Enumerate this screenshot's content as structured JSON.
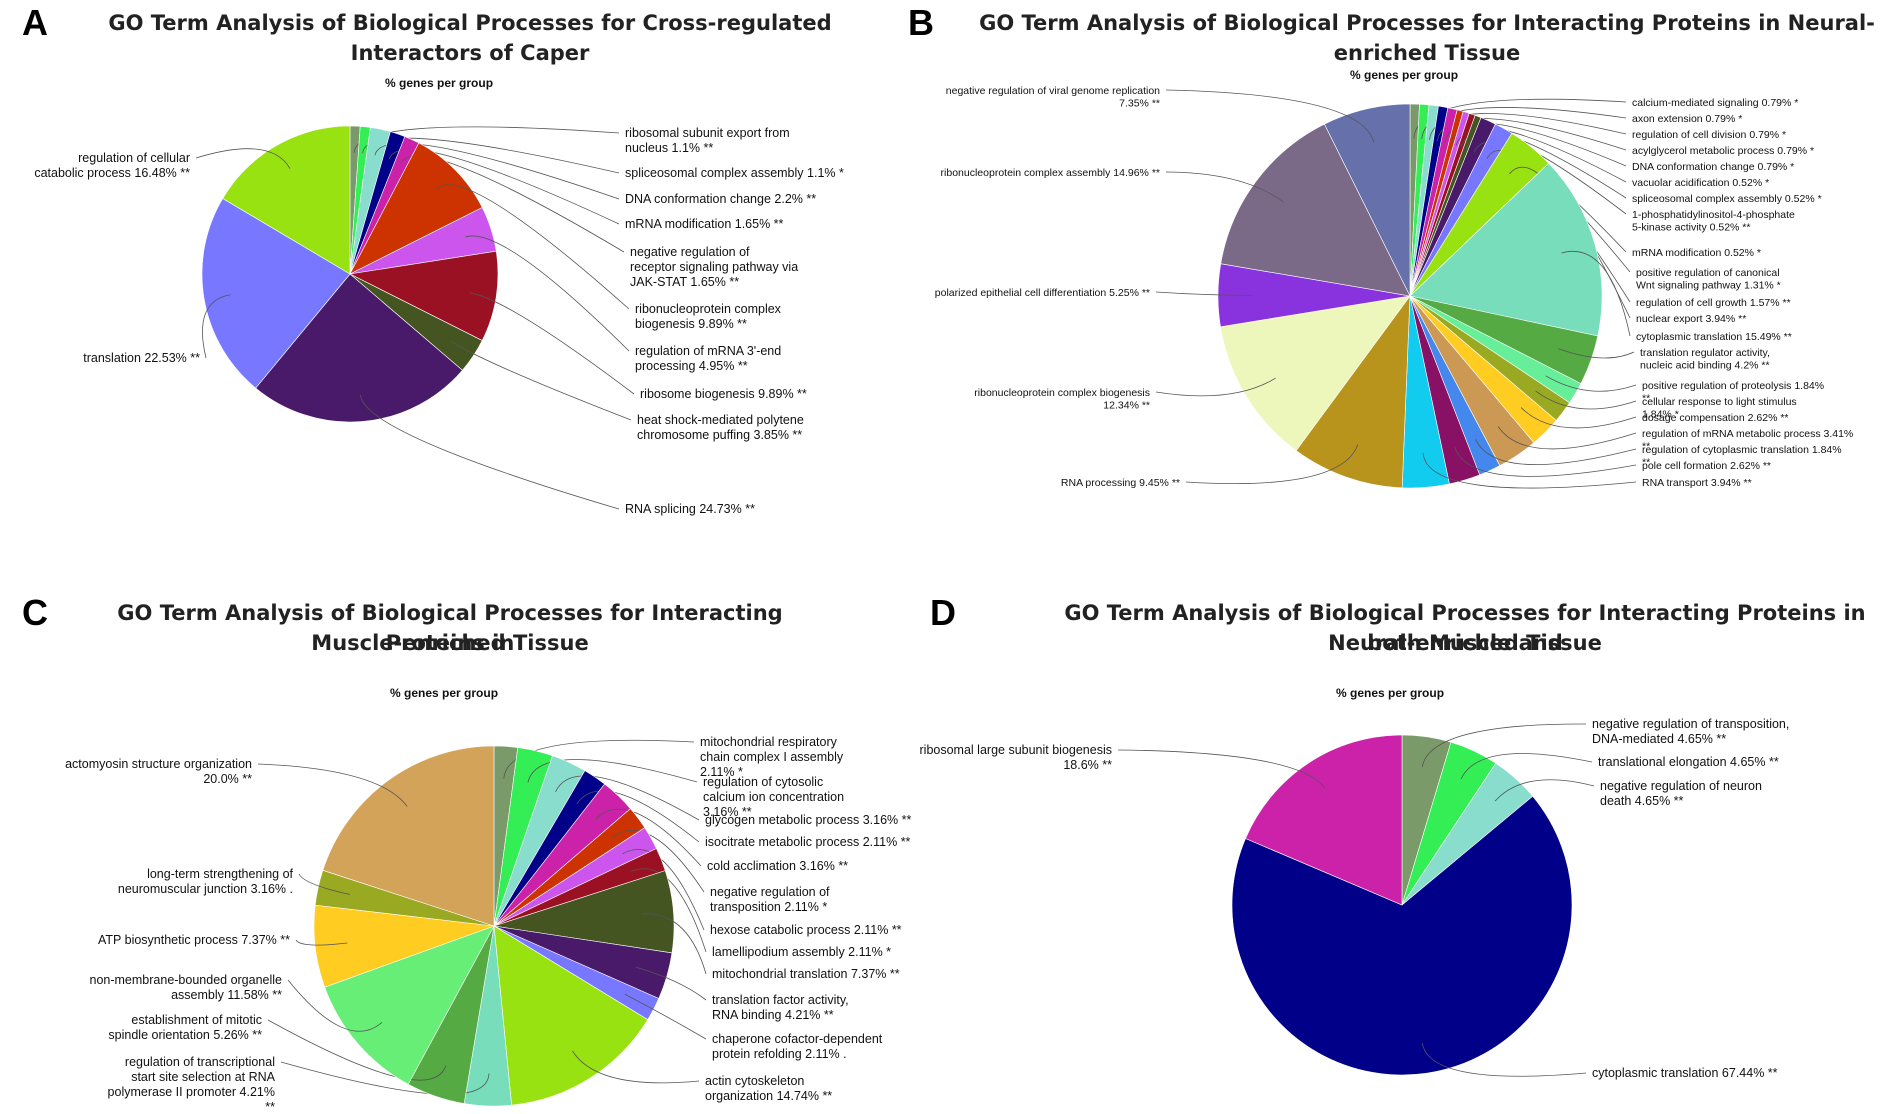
{
  "chart_data": [
    {
      "panel": "A",
      "type": "pie",
      "title": "GO Term Analysis of Biological Processes for Cross-regulated Interactors of Caper",
      "subtitle": "% genes per group",
      "slices": [
        {
          "label": "ribosomal subunit export from nucleus 1.1% **",
          "value": 1.1,
          "color": "#7a9a6a"
        },
        {
          "label": "spliceosomal complex assembly 1.1% *",
          "value": 1.1,
          "color": "#33ee55"
        },
        {
          "label": "DNA conformation change 2.2% **",
          "value": 2.2,
          "color": "#88ddcc"
        },
        {
          "label": "mRNA modification 1.65% **",
          "value": 1.65,
          "color": "#000088"
        },
        {
          "label": "negative regulation of receptor signaling pathway via JAK-STAT 1.65% **",
          "value": 1.65,
          "color": "#cc22aa"
        },
        {
          "label": "ribonucleoprotein complex biogenesis 9.89% **",
          "value": 9.89,
          "color": "#cc3300"
        },
        {
          "label": "regulation of mRNA 3'-end processing 4.95% **",
          "value": 4.95,
          "color": "#cc55ee"
        },
        {
          "label": "ribosome biogenesis 9.89% **",
          "value": 9.89,
          "color": "#991122"
        },
        {
          "label": "heat shock-mediated polytene chromosome puffing 3.85% **",
          "value": 3.85,
          "color": "#445522"
        },
        {
          "label": "RNA splicing 24.73% **",
          "value": 24.73,
          "color": "#4a1a6a"
        },
        {
          "label": "translation 22.53% **",
          "value": 22.53,
          "color": "#7777ff"
        },
        {
          "label": "regulation of cellular catabolic process 16.48% **",
          "value": 16.48,
          "color": "#99e211"
        }
      ]
    },
    {
      "panel": "B",
      "type": "pie",
      "title": "GO Term Analysis of Biological Processes for Interacting Proteins in Neural-enriched Tissue",
      "subtitle": "% genes per group",
      "slices": [
        {
          "label": "calcium-mediated signaling 0.79% *",
          "value": 0.79,
          "color": "#7a9a6a"
        },
        {
          "label": "axon extension 0.79% *",
          "value": 0.79,
          "color": "#33ee55"
        },
        {
          "label": "regulation of cell division 0.79% *",
          "value": 0.79,
          "color": "#88ddcc"
        },
        {
          "label": "acylglycerol metabolic process 0.79% *",
          "value": 0.79,
          "color": "#000088"
        },
        {
          "label": "DNA conformation change 0.79% *",
          "value": 0.79,
          "color": "#cc22aa"
        },
        {
          "label": "vacuolar acidification 0.52% *",
          "value": 0.52,
          "color": "#cc3300"
        },
        {
          "label": "spliceosomal complex assembly 0.52% *",
          "value": 0.52,
          "color": "#cc55ee"
        },
        {
          "label": "1-phosphatidylinositol-4-phosphate 5-kinase activity 0.52% **",
          "value": 0.52,
          "color": "#991122"
        },
        {
          "label": "mRNA modification 0.52% *",
          "value": 0.52,
          "color": "#445522"
        },
        {
          "label": "positive regulation of canonical Wnt signaling pathway 1.31% *",
          "value": 1.31,
          "color": "#4a1a6a"
        },
        {
          "label": "regulation of cell growth 1.57% **",
          "value": 1.57,
          "color": "#7777ff"
        },
        {
          "label": "nuclear export 3.94% **",
          "value": 3.94,
          "color": "#99e211"
        },
        {
          "label": "cytoplasmic translation 15.49% **",
          "value": 15.49,
          "color": "#77ddbb"
        },
        {
          "label": "translation regulator activity, nucleic acid binding 4.2% **",
          "value": 4.2,
          "color": "#55aa44"
        },
        {
          "label": "positive regulation of proteolysis 1.84% **",
          "value": 1.84,
          "color": "#66ee99"
        },
        {
          "label": "cellular response to light stimulus 1.84% *",
          "value": 1.84,
          "color": "#99aa22"
        },
        {
          "label": "dosage compensation 2.62% **",
          "value": 2.62,
          "color": "#ffcc22"
        },
        {
          "label": "regulation of mRNA metabolic process 3.41% **",
          "value": 3.41,
          "color": "#cc9955"
        },
        {
          "label": "regulation of cytoplasmic translation 1.84% **",
          "value": 1.84,
          "color": "#4488ee"
        },
        {
          "label": "pole cell formation 2.62% **",
          "value": 2.62,
          "color": "#881166"
        },
        {
          "label": "RNA transport 3.94% **",
          "value": 3.94,
          "color": "#11ccee"
        },
        {
          "label": "RNA processing 9.45% **",
          "value": 9.45,
          "color": "#b8941c"
        },
        {
          "label": "ribonucleoprotein complex biogenesis 12.34% **",
          "value": 12.34,
          "color": "#eef7bb"
        },
        {
          "label": "polarized epithelial cell differentiation 5.25% **",
          "value": 5.25,
          "color": "#8833dd"
        },
        {
          "label": "ribonucleoprotein complex assembly 14.96% **",
          "value": 14.96,
          "color": "#7a6a88"
        },
        {
          "label": "negative regulation of viral genome replication 7.35% **",
          "value": 7.35,
          "color": "#6670aa"
        }
      ]
    },
    {
      "panel": "C",
      "type": "pie",
      "title": "GO Term Analysis of Biological Processes for Interacting Proteins in Muscle-enriched Tissue",
      "subtitle": "% genes per group",
      "slices": [
        {
          "label": "mitochondrial respiratory chain complex I assembly 2.11% *",
          "value": 2.11,
          "color": "#7a9a6a"
        },
        {
          "label": "regulation of cytosolic calcium ion concentration 3.16% **",
          "value": 3.16,
          "color": "#33ee55"
        },
        {
          "label": "glycogen metabolic process 3.16% **",
          "value": 3.16,
          "color": "#88ddcc"
        },
        {
          "label": "isocitrate metabolic process 2.11% **",
          "value": 2.11,
          "color": "#000088"
        },
        {
          "label": "cold acclimation 3.16% **",
          "value": 3.16,
          "color": "#cc22aa"
        },
        {
          "label": "negative regulation of transposition 2.11% *",
          "value": 2.11,
          "color": "#cc3300"
        },
        {
          "label": "hexose catabolic process 2.11% **",
          "value": 2.11,
          "color": "#cc55ee"
        },
        {
          "label": "lamellipodium assembly 2.11% *",
          "value": 2.11,
          "color": "#991122"
        },
        {
          "label": "mitochondrial translation 7.37% **",
          "value": 7.37,
          "color": "#445522"
        },
        {
          "label": "translation factor activity, RNA binding 4.21% **",
          "value": 4.21,
          "color": "#4a1a6a"
        },
        {
          "label": "chaperone cofactor-dependent protein refolding 2.11% .",
          "value": 2.11,
          "color": "#7777ff"
        },
        {
          "label": "actin cytoskeleton organization 14.74% **",
          "value": 14.74,
          "color": "#99e211"
        },
        {
          "label": "regulation of transcriptional start site selection at RNA polymerase II promoter 4.21% **",
          "value": 4.21,
          "color": "#77ddbb"
        },
        {
          "label": "establishment of mitotic spindle orientation 5.26% **",
          "value": 5.26,
          "color": "#55aa44"
        },
        {
          "label": "non-membrane-bounded organelle assembly 11.58% **",
          "value": 11.58,
          "color": "#66ee77"
        },
        {
          "label": "ATP biosynthetic process 7.37% **",
          "value": 7.37,
          "color": "#ffcc22"
        },
        {
          "label": "long-term strengthening of neuromuscular junction 3.16% .",
          "value": 3.16,
          "color": "#99aa22"
        },
        {
          "label": "actomyosin structure organization 20.0% **",
          "value": 20.0,
          "color": "#d4a35a"
        }
      ]
    },
    {
      "panel": "D",
      "type": "pie",
      "title": "GO Term Analysis of Biological Processes for Interacting Proteins in both Muscle and Neural-enriched Tissue",
      "subtitle": "% genes per group",
      "slices": [
        {
          "label": "negative regulation of transposition, DNA-mediated 4.65% **",
          "value": 4.65,
          "color": "#7a9a6a"
        },
        {
          "label": "translational elongation 4.65% **",
          "value": 4.65,
          "color": "#33ee55"
        },
        {
          "label": "negative regulation of neuron death 4.65% **",
          "value": 4.65,
          "color": "#88ddcc"
        },
        {
          "label": "cytoplasmic translation 67.44% **",
          "value": 67.44,
          "color": "#000088"
        },
        {
          "label": "ribosomal large subunit biogenesis 18.6% **",
          "value": 18.6,
          "color": "#cc22aa"
        }
      ]
    }
  ],
  "panels": [
    {
      "letter": "A",
      "title_lines": [
        "GO Term Analysis of Biological Processes for Cross-regulated Interactors of Caper"
      ],
      "subtitle": "% genes per group"
    },
    {
      "letter": "B",
      "title_lines": [
        "GO Term Analysis of Biological Processes for Interacting Proteins in Neural-enriched Tissue"
      ],
      "subtitle": "% genes per group"
    },
    {
      "letter": "C",
      "title_lines": [
        "GO Term Analysis of Biological Processes for Interacting Proteins in",
        "Muscle-enriched Tissue"
      ],
      "subtitle": "% genes per group"
    },
    {
      "letter": "D",
      "title_lines": [
        "GO Term Analysis of Biological Processes for Interacting Proteins in both Muscle and",
        "Neural-enriched Tissue"
      ],
      "subtitle": "% genes per group"
    }
  ]
}
